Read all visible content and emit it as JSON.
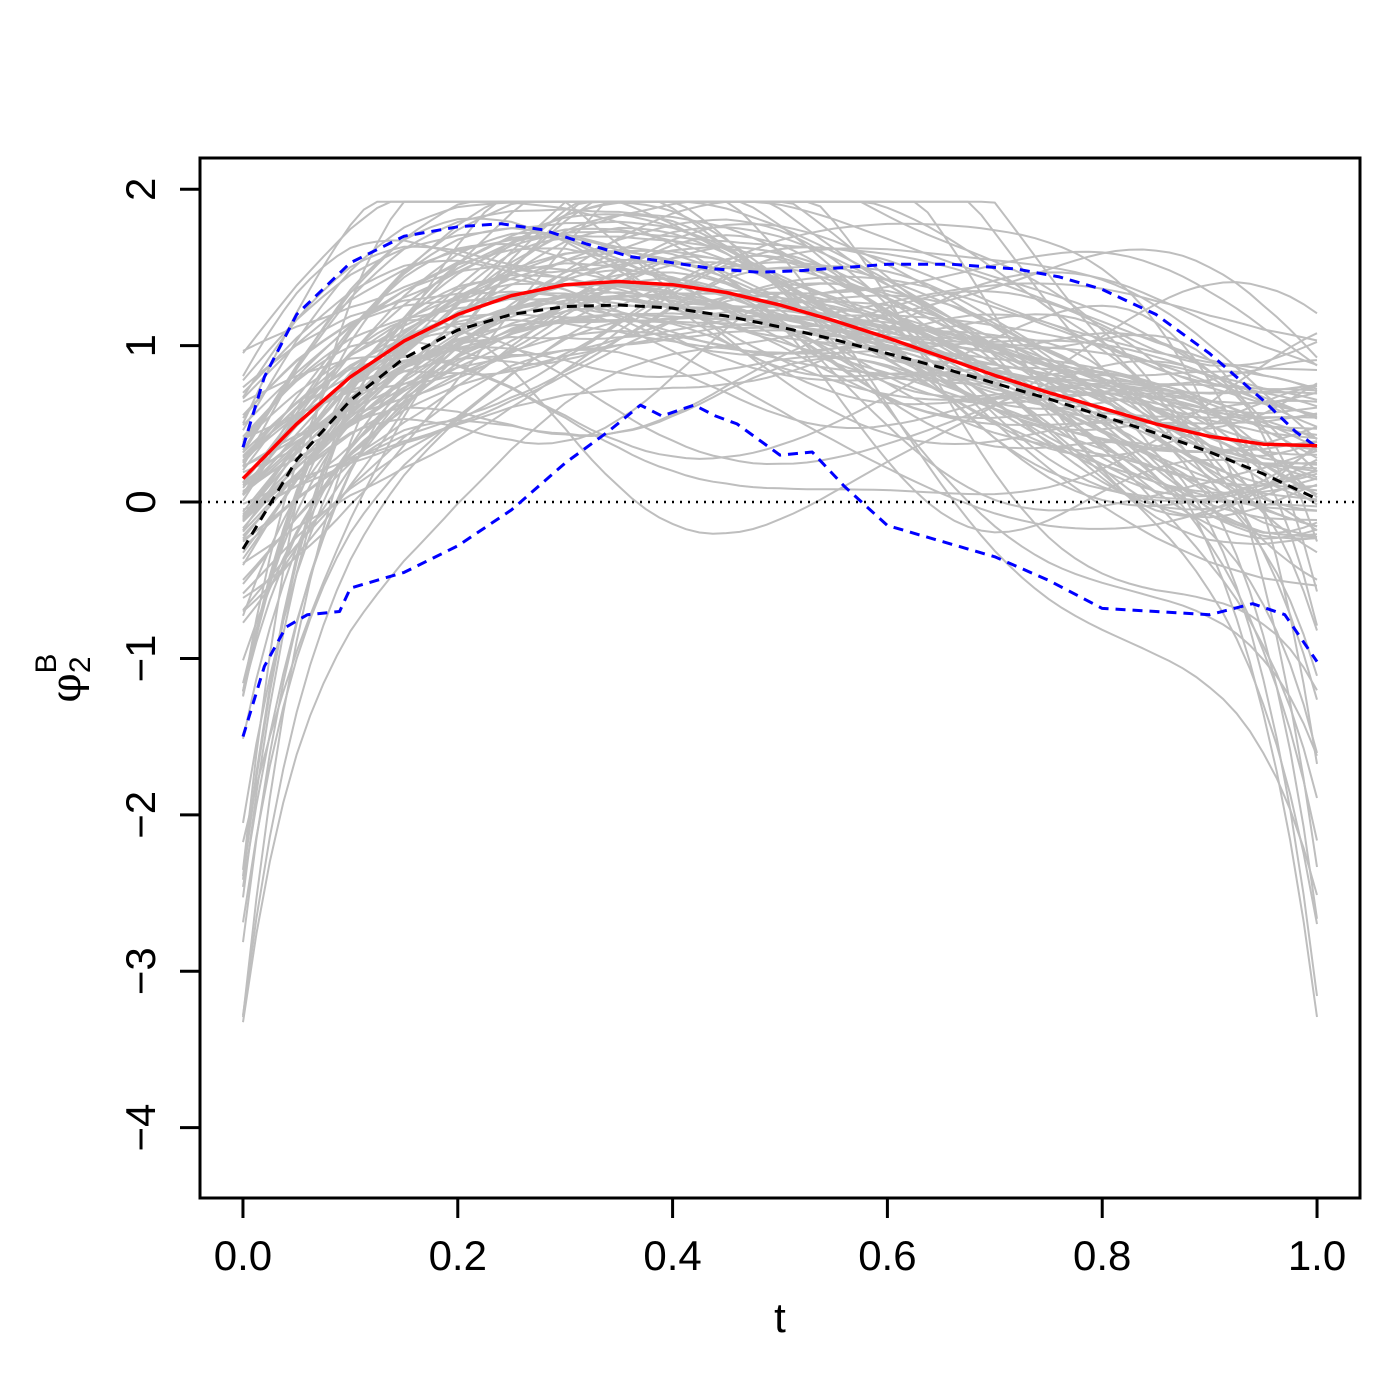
{
  "chart_data": {
    "type": "line",
    "xlabel": "t",
    "ylabel": {
      "symbol": "φ",
      "subscript": "2",
      "superscript": "B"
    },
    "xlim": [
      -0.04,
      1.04
    ],
    "ylim": [
      -4.45,
      2.2
    ],
    "x_ticks": [
      "0.0",
      "0.2",
      "0.4",
      "0.6",
      "0.8",
      "1.0"
    ],
    "x_tick_values": [
      0,
      0.2,
      0.4,
      0.6,
      0.8,
      1.0
    ],
    "y_ticks": [
      "2",
      "1",
      "0",
      "−1",
      "−2",
      "−3",
      "−4"
    ],
    "y_tick_values": [
      2,
      1,
      0,
      -1,
      -2,
      -3,
      -4
    ],
    "reference_line": {
      "y": 0,
      "style": "dotted",
      "color": "#000000"
    },
    "colors": {
      "bootstrap": "#bebebe",
      "estimate": "#ff0000",
      "band": "#0000ff",
      "truth": "#000000"
    },
    "bootstrap_curve_count": 100,
    "series": [
      {
        "role": "estimate",
        "color": "#ff0000",
        "style": "solid",
        "x": [
          0,
          0.05,
          0.1,
          0.15,
          0.2,
          0.25,
          0.3,
          0.35,
          0.4,
          0.45,
          0.5,
          0.55,
          0.6,
          0.65,
          0.7,
          0.75,
          0.8,
          0.85,
          0.9,
          0.95,
          1.0
        ],
        "y": [
          0.15,
          0.5,
          0.8,
          1.03,
          1.2,
          1.32,
          1.39,
          1.41,
          1.39,
          1.34,
          1.26,
          1.16,
          1.05,
          0.93,
          0.81,
          0.7,
          0.6,
          0.5,
          0.42,
          0.37,
          0.36
        ]
      },
      {
        "role": "truth",
        "color": "#000000",
        "style": "dashed",
        "x": [
          0,
          0.05,
          0.1,
          0.15,
          0.2,
          0.25,
          0.3,
          0.35,
          0.4,
          0.45,
          0.5,
          0.55,
          0.6,
          0.65,
          0.7,
          0.75,
          0.8,
          0.85,
          0.9,
          0.95,
          1.0
        ],
        "y": [
          -0.3,
          0.27,
          0.65,
          0.92,
          1.1,
          1.2,
          1.25,
          1.26,
          1.24,
          1.19,
          1.12,
          1.04,
          0.95,
          0.86,
          0.76,
          0.66,
          0.55,
          0.44,
          0.32,
          0.18,
          0.02
        ]
      },
      {
        "role": "upper-band",
        "color": "#0000ff",
        "style": "dashed",
        "x": [
          0,
          0.02,
          0.05,
          0.1,
          0.15,
          0.2,
          0.24,
          0.28,
          0.32,
          0.36,
          0.4,
          0.44,
          0.48,
          0.52,
          0.56,
          0.6,
          0.66,
          0.72,
          0.76,
          0.8,
          0.85,
          0.9,
          0.95,
          0.98,
          1.0
        ],
        "y": [
          0.35,
          0.8,
          1.2,
          1.53,
          1.7,
          1.76,
          1.78,
          1.74,
          1.65,
          1.57,
          1.53,
          1.49,
          1.47,
          1.48,
          1.5,
          1.52,
          1.52,
          1.49,
          1.44,
          1.36,
          1.2,
          0.95,
          0.65,
          0.45,
          0.35
        ]
      },
      {
        "role": "lower-band",
        "color": "#0000ff",
        "style": "dashed",
        "x": [
          0,
          0.02,
          0.04,
          0.06,
          0.09,
          0.1,
          0.15,
          0.2,
          0.25,
          0.3,
          0.34,
          0.37,
          0.39,
          0.42,
          0.44,
          0.46,
          0.48,
          0.5,
          0.53,
          0.56,
          0.6,
          0.65,
          0.7,
          0.75,
          0.8,
          0.85,
          0.9,
          0.94,
          0.97,
          1.0
        ],
        "y": [
          -1.5,
          -1.05,
          -0.8,
          -0.72,
          -0.7,
          -0.55,
          -0.45,
          -0.28,
          -0.05,
          0.25,
          0.45,
          0.62,
          0.55,
          0.62,
          0.55,
          0.5,
          0.4,
          0.3,
          0.32,
          0.1,
          -0.15,
          -0.25,
          -0.35,
          -0.5,
          -0.68,
          -0.7,
          -0.72,
          -0.65,
          -0.72,
          -1.02
        ]
      }
    ]
  }
}
